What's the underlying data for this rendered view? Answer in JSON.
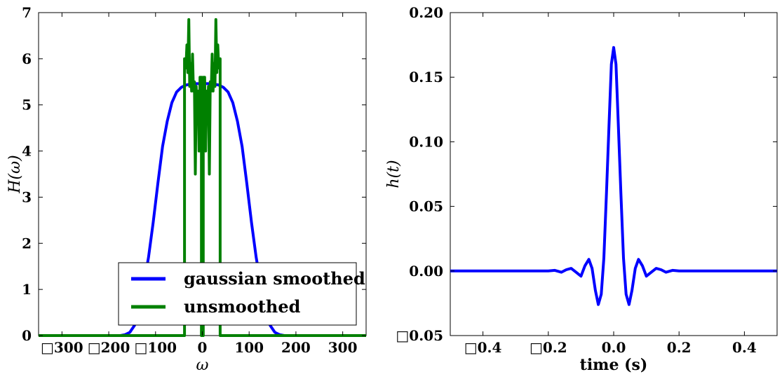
{
  "chart_data": [
    {
      "type": "line",
      "xlabel": "ω",
      "ylabel": "H(ω)",
      "xlim": [
        -350,
        350
      ],
      "ylim": [
        0,
        7
      ],
      "x_ticks": [
        -300,
        -200,
        -100,
        0,
        100,
        200,
        300
      ],
      "x_tick_labels": [
        "□300",
        "□200",
        "□100",
        "0",
        "100",
        "200",
        "300"
      ],
      "y_ticks": [
        0,
        1,
        2,
        3,
        4,
        5,
        6,
        7
      ],
      "y_tick_labels": [
        "0",
        "1",
        "2",
        "3",
        "4",
        "5",
        "6",
        "7"
      ],
      "legend_placement": "lower-right",
      "series": [
        {
          "name": "gaussian smoothed",
          "color": "#0000ff",
          "x": [
            -350,
            -175,
            -165,
            -155,
            -145,
            -135,
            -125,
            -115,
            -105,
            -95,
            -85,
            -75,
            -65,
            -55,
            -45,
            -35,
            -25,
            -15,
            0,
            15,
            25,
            35,
            45,
            55,
            65,
            75,
            85,
            95,
            105,
            115,
            125,
            135,
            145,
            155,
            165,
            175,
            350
          ],
          "values": [
            0,
            0,
            0.02,
            0.07,
            0.22,
            0.55,
            1.1,
            1.7,
            2.45,
            3.3,
            4.1,
            4.65,
            5.05,
            5.28,
            5.38,
            5.43,
            5.45,
            5.46,
            5.46,
            5.46,
            5.45,
            5.43,
            5.38,
            5.28,
            5.05,
            4.65,
            4.1,
            3.3,
            2.45,
            1.7,
            1.1,
            0.55,
            0.22,
            0.07,
            0.02,
            0,
            0
          ]
        },
        {
          "name": "unsmoothed",
          "color": "#008000",
          "x": [
            -350,
            -38,
            -38,
            -35,
            -33,
            -31,
            -29,
            -27,
            -25,
            -23,
            -21,
            -19,
            -17,
            -15,
            -13,
            -11,
            -9,
            -7,
            -5,
            -3,
            -2,
            -2,
            2,
            2,
            3,
            5,
            7,
            9,
            11,
            13,
            15,
            17,
            19,
            21,
            23,
            25,
            27,
            29,
            31,
            33,
            35,
            38,
            38,
            350
          ],
          "values": [
            0,
            0,
            6.0,
            5.8,
            6.3,
            5.7,
            6.85,
            5.4,
            5.9,
            5.3,
            6.1,
            5.3,
            5.5,
            3.5,
            5.4,
            4.7,
            5.3,
            4.0,
            5.6,
            4.3,
            5.6,
            0,
            0,
            5.6,
            4.3,
            5.6,
            4.0,
            5.3,
            4.7,
            5.4,
            3.5,
            5.5,
            5.3,
            6.1,
            5.3,
            5.9,
            5.4,
            6.85,
            5.7,
            6.3,
            5.8,
            6.0,
            0,
            0
          ]
        }
      ]
    },
    {
      "type": "line",
      "xlabel": "time (s)",
      "ylabel": "h(t)",
      "xlim": [
        -0.5,
        0.5
      ],
      "ylim": [
        -0.05,
        0.2
      ],
      "x_ticks": [
        -0.4,
        -0.2,
        0.0,
        0.2,
        0.4
      ],
      "x_tick_labels": [
        "□0.4",
        "□0.2",
        "0.0",
        "0.2",
        "0.4"
      ],
      "y_ticks": [
        -0.05,
        0.0,
        0.05,
        0.1,
        0.15,
        0.2
      ],
      "y_tick_labels": [
        "□0.05",
        "0.00",
        "0.05",
        "0.10",
        "0.15",
        "0.20"
      ],
      "series": [
        {
          "color": "#0000ff",
          "x": [
            -0.5,
            -0.2,
            -0.18,
            -0.16,
            -0.145,
            -0.13,
            -0.115,
            -0.1,
            -0.088,
            -0.076,
            -0.066,
            -0.056,
            -0.047,
            -0.038,
            -0.03,
            -0.022,
            -0.014,
            -0.007,
            0,
            0.007,
            0.014,
            0.022,
            0.03,
            0.038,
            0.047,
            0.056,
            0.066,
            0.076,
            0.088,
            0.1,
            0.115,
            0.13,
            0.145,
            0.16,
            0.18,
            0.2,
            0.5
          ],
          "values": [
            0,
            0,
            0.0005,
            -0.001,
            0.001,
            0.002,
            -0.001,
            -0.004,
            0.004,
            0.009,
            0.002,
            -0.015,
            -0.026,
            -0.018,
            0.01,
            0.06,
            0.115,
            0.16,
            0.173,
            0.16,
            0.115,
            0.06,
            0.01,
            -0.018,
            -0.026,
            -0.015,
            0.002,
            0.009,
            0.004,
            -0.004,
            -0.001,
            0.002,
            0.001,
            -0.001,
            0.0005,
            0,
            0
          ]
        }
      ]
    }
  ]
}
